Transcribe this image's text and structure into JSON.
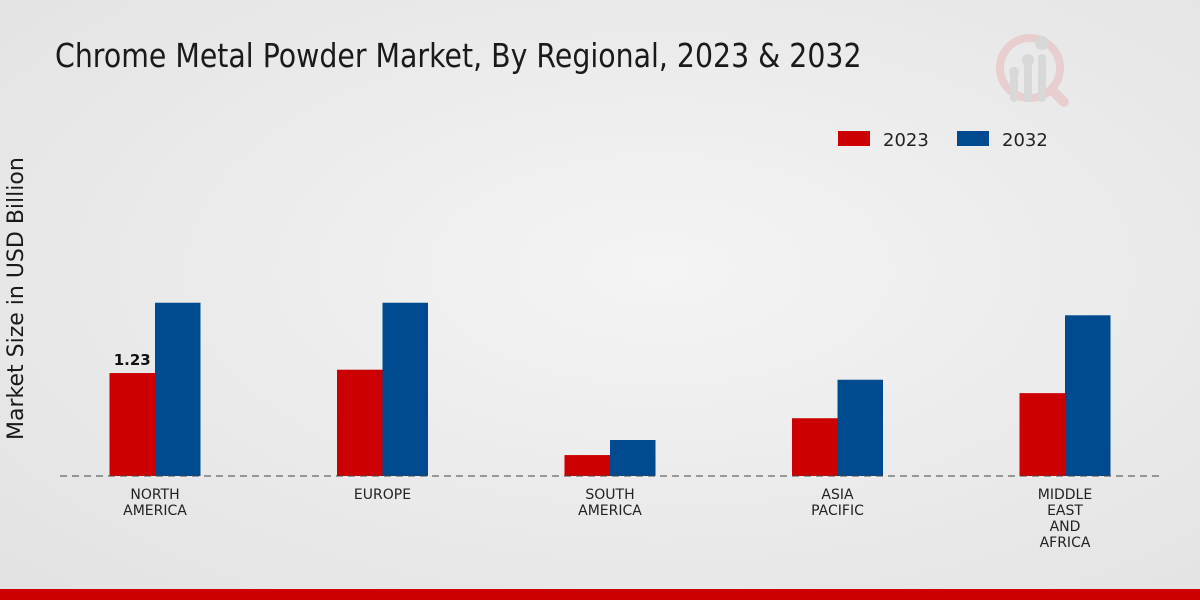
{
  "chart_data": {
    "type": "bar",
    "title": "Chrome Metal Powder Market, By Regional, 2023 & 2032",
    "xlabel": "",
    "ylabel": "Market Size in USD Billion",
    "categories": [
      [
        "NORTH",
        "AMERICA"
      ],
      [
        "EUROPE"
      ],
      [
        "SOUTH",
        "AMERICA"
      ],
      [
        "ASIA",
        "PACIFIC"
      ],
      [
        "MIDDLE",
        "EAST",
        "AND",
        "AFRICA"
      ]
    ],
    "series": [
      {
        "name": "2023",
        "color": "#cc0000",
        "values": [
          1.23,
          1.27,
          0.25,
          0.69,
          0.99
        ]
      },
      {
        "name": "2032",
        "color": "#004a8f",
        "values": [
          2.07,
          2.07,
          0.43,
          1.15,
          1.92
        ]
      }
    ],
    "data_labels": [
      {
        "series": 0,
        "index": 0,
        "text": "1.23"
      }
    ],
    "ylim": [
      0,
      2.5
    ],
    "grid": false,
    "legend_position": "top-right"
  },
  "footer_color": "#cc0000"
}
